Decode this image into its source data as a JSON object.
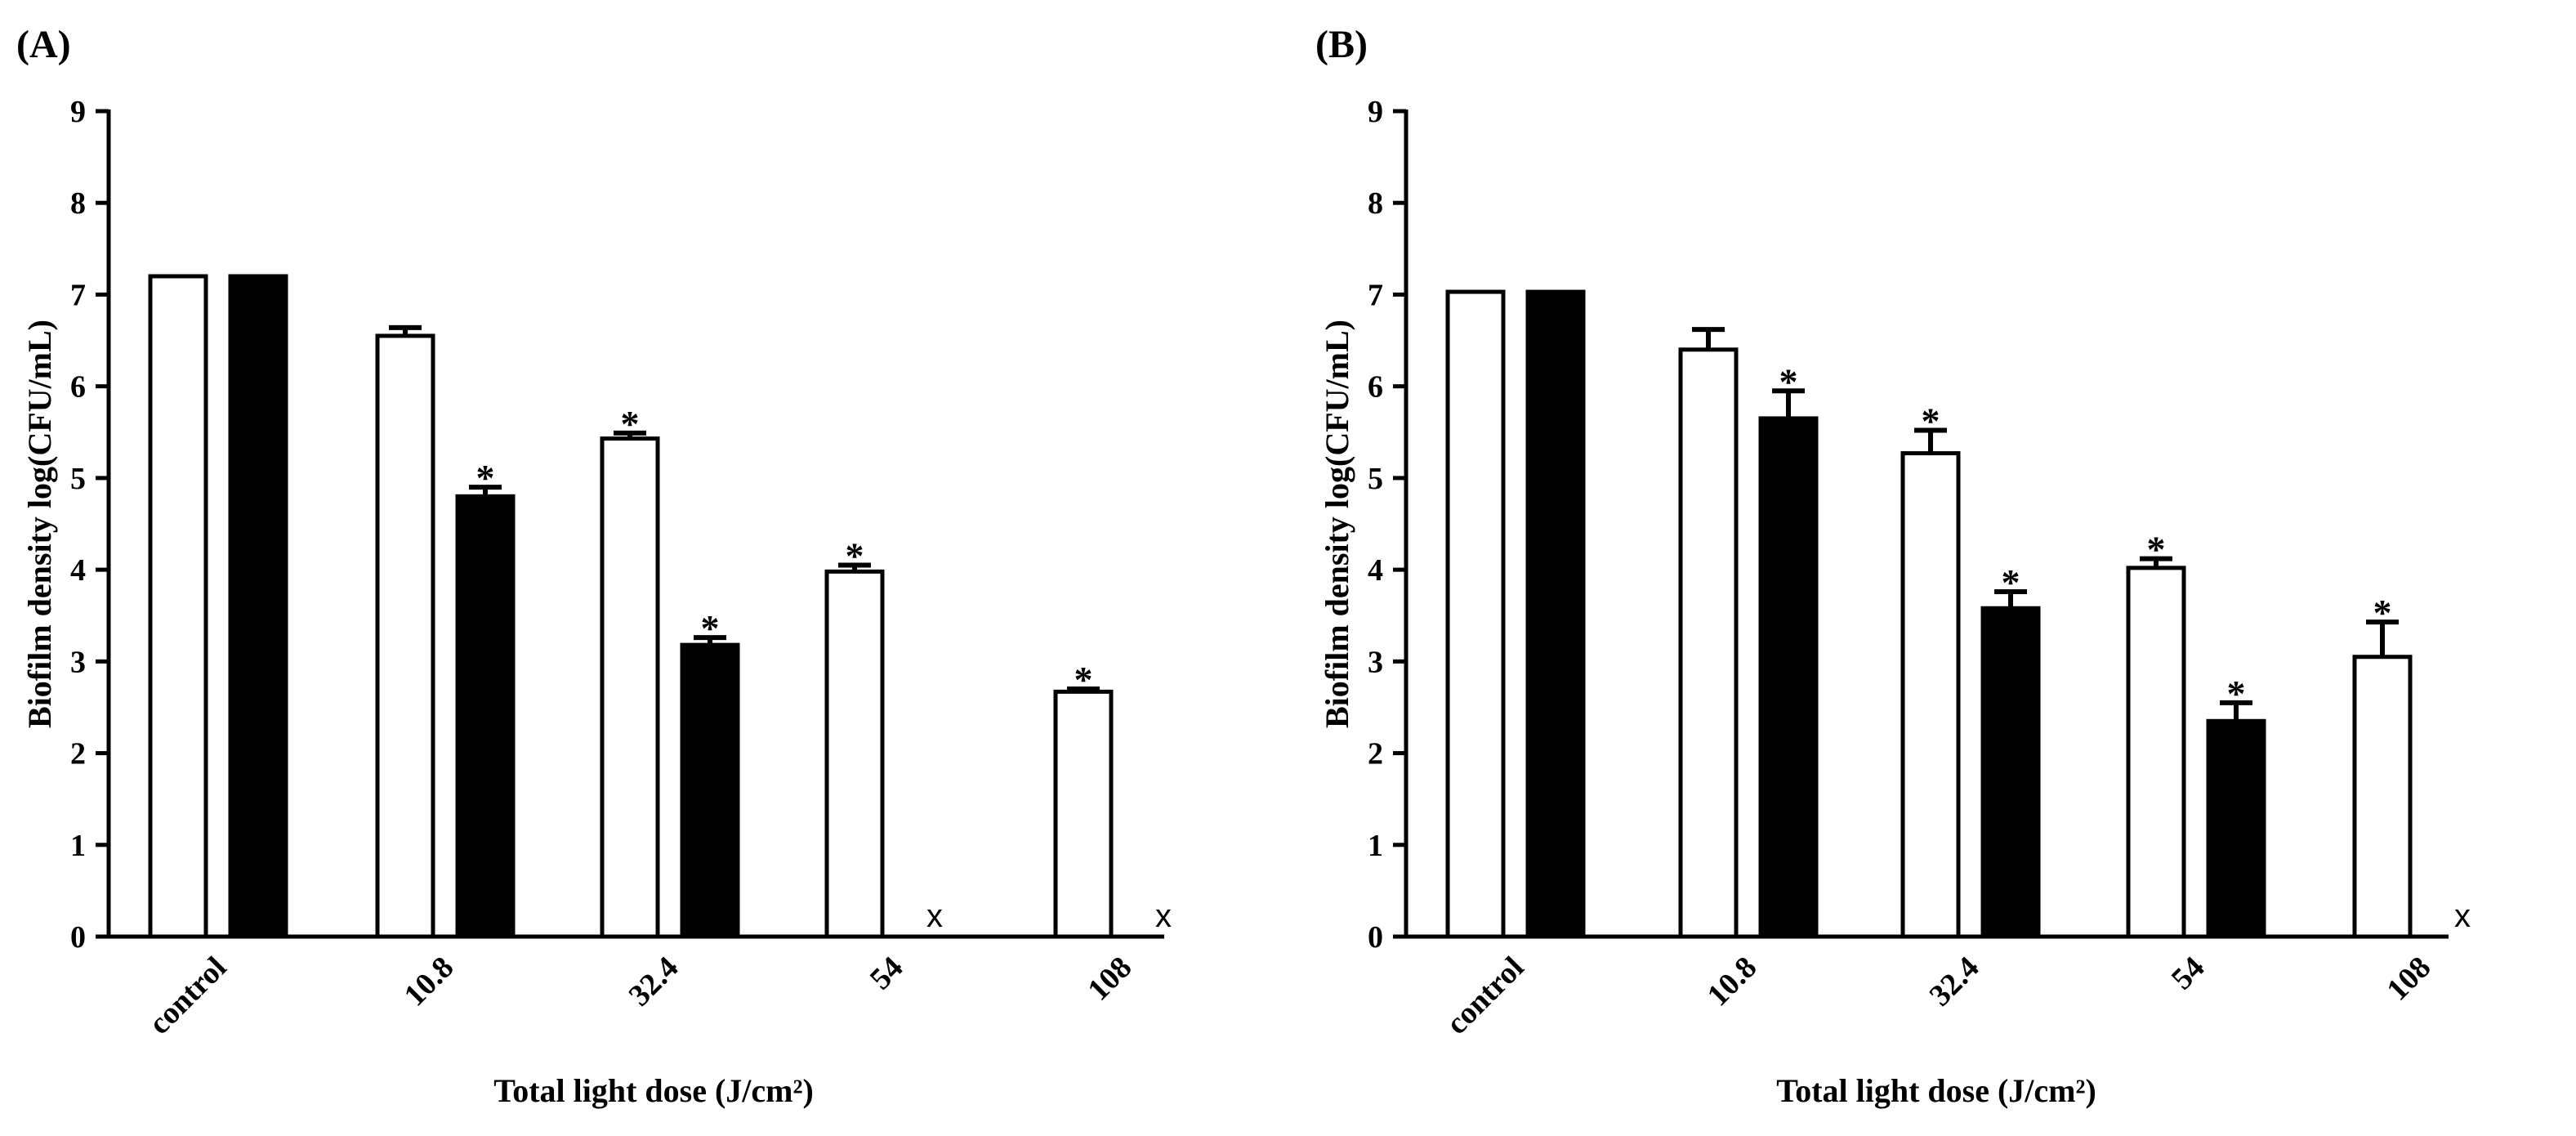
{
  "chart_data": [
    {
      "panel_label": "(A)",
      "type": "bar",
      "xlabel": "Total light dose (J/cm²)",
      "ylabel": "Biofilm density log(CFU/mL)",
      "ylim": [
        0,
        9
      ],
      "yticks": [
        "0",
        "1",
        "2",
        "3",
        "4",
        "5",
        "6",
        "7",
        "8",
        "9"
      ],
      "categories": [
        "control",
        "10.8",
        "32.4",
        "54",
        "108"
      ],
      "series": [
        {
          "name": "open bars",
          "fill": "#ffffff",
          "values": [
            7.2,
            6.55,
            5.43,
            3.98,
            2.67
          ],
          "errors": [
            0,
            0.09,
            0.06,
            0.07,
            0.03
          ],
          "significant": [
            false,
            false,
            true,
            true,
            true
          ],
          "not_detected": [
            false,
            false,
            false,
            false,
            false
          ]
        },
        {
          "name": "filled bars",
          "fill": "#000000",
          "values": [
            7.2,
            4.8,
            3.18,
            0,
            0
          ],
          "errors": [
            0,
            0.1,
            0.08,
            0,
            0
          ],
          "significant": [
            false,
            true,
            true,
            false,
            false
          ],
          "not_detected": [
            false,
            false,
            false,
            true,
            true
          ]
        }
      ],
      "significance_marker": "*",
      "not_detected_marker": "x"
    },
    {
      "panel_label": "(B)",
      "type": "bar",
      "xlabel": "Total light dose (J/cm²)",
      "ylabel": "Biofilm density log(CFU/mL)",
      "ylim": [
        0,
        9
      ],
      "yticks": [
        "0",
        "1",
        "2",
        "3",
        "4",
        "5",
        "6",
        "7",
        "8",
        "9"
      ],
      "categories": [
        "control",
        "10.8",
        "32.4",
        "54",
        "108"
      ],
      "series": [
        {
          "name": "open bars",
          "fill": "#ffffff",
          "values": [
            7.03,
            6.4,
            5.27,
            4.02,
            3.05
          ],
          "errors": [
            0,
            0.22,
            0.25,
            0.1,
            0.38
          ],
          "significant": [
            false,
            false,
            true,
            true,
            true
          ],
          "not_detected": [
            false,
            false,
            false,
            false,
            false
          ]
        },
        {
          "name": "filled bars",
          "fill": "#000000",
          "values": [
            7.03,
            5.65,
            3.58,
            2.35,
            0
          ],
          "errors": [
            0,
            0.3,
            0.18,
            0.2,
            0
          ],
          "significant": [
            false,
            true,
            true,
            true,
            false
          ],
          "not_detected": [
            false,
            false,
            false,
            false,
            true
          ]
        }
      ],
      "significance_marker": "*",
      "not_detected_marker": "x"
    }
  ]
}
